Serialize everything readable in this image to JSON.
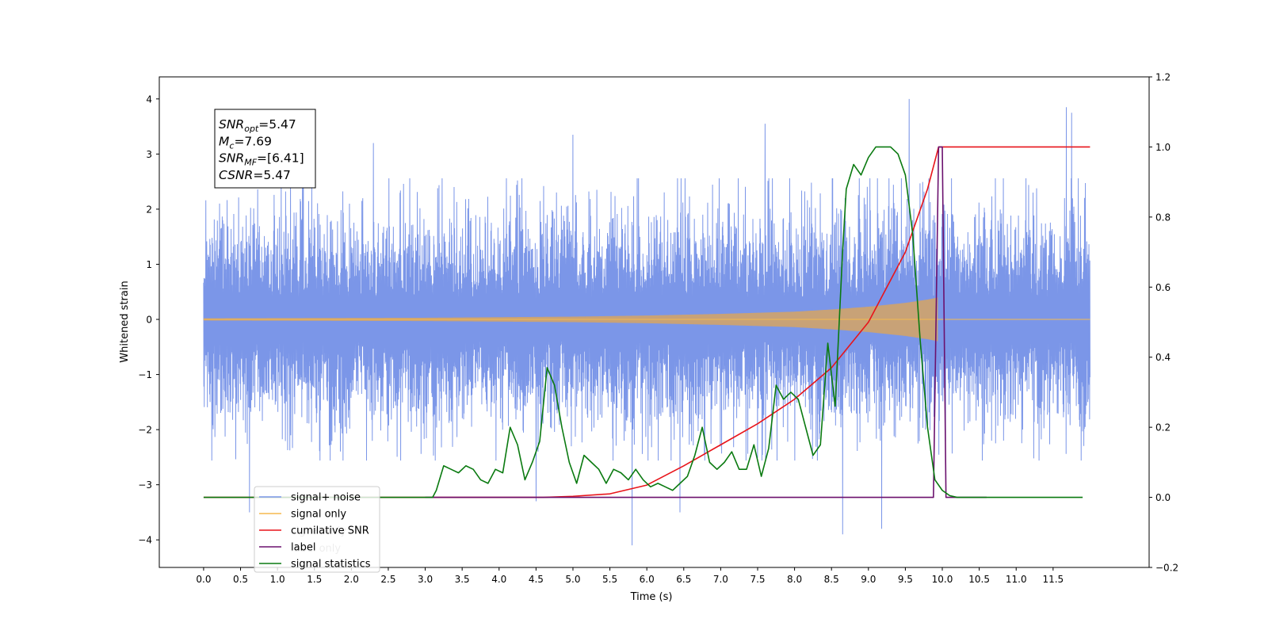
{
  "chart_data": {
    "type": "line",
    "xlabel": "Time (s)",
    "ylabel": "Whitened strain",
    "xlim": [
      -0.6,
      12.8
    ],
    "ylim": [
      -4.5,
      4.4
    ],
    "y2lim": [
      -0.2,
      1.2
    ],
    "x_ticks": [
      0.0,
      0.5,
      1.0,
      1.5,
      2.0,
      2.5,
      3.0,
      3.5,
      4.0,
      4.5,
      5.0,
      5.5,
      6.0,
      6.5,
      7.0,
      7.5,
      8.0,
      8.5,
      9.0,
      9.5,
      10.0,
      10.5,
      11.0,
      11.5
    ],
    "x_tick_labels": [
      "0.0",
      "0.5",
      "1.0",
      "1.5",
      "2.0",
      "2.5",
      "3.0",
      "3.5",
      "4.0",
      "4.5",
      "5.0",
      "5.5",
      "6.0",
      "6.5",
      "7.0",
      "7.5",
      "8.0",
      "8.5",
      "9.0",
      "9.5",
      "10.0",
      "10.5",
      "11.0",
      "11.5"
    ],
    "y_ticks": [
      4,
      3,
      2,
      1,
      0,
      -1,
      -2,
      -3,
      -4
    ],
    "y_tick_labels": [
      "4",
      "3",
      "2",
      "1",
      "0",
      "−1",
      "−2",
      "−3",
      "−4"
    ],
    "y2_ticks": [
      1.2,
      1.0,
      0.8,
      0.6,
      0.4,
      0.2,
      0.0,
      -0.2
    ],
    "y2_tick_labels": [
      "1.2",
      "1.0",
      "0.8",
      "0.6",
      "0.4",
      "0.2",
      "0.0",
      "−0.2"
    ],
    "grid": false,
    "legend_position": "lower-left",
    "annotation": {
      "lines": [
        {
          "main": "SNR",
          "sub": "opt",
          "rest": "=5.47"
        },
        {
          "main": "M",
          "sub": "c",
          "rest": "=7.69"
        },
        {
          "main": "SNR",
          "sub": "MF",
          "rest": "=[6.41]"
        },
        {
          "main": "CSNR",
          "sub": "",
          "rest": "=5.47"
        }
      ]
    },
    "series": [
      {
        "name": "signal+ noise",
        "axis": "left",
        "color": "#7b96e8",
        "x_range": [
          0.0,
          12.0
        ],
        "samples": 4000,
        "typical_amplitude": 1.5,
        "spikes": [
          {
            "x": 0.62,
            "y": -3.5
          },
          {
            "x": 1.35,
            "y": 3.3
          },
          {
            "x": 2.3,
            "y": 3.2
          },
          {
            "x": 4.5,
            "y": -3.3
          },
          {
            "x": 5.0,
            "y": 3.35
          },
          {
            "x": 5.8,
            "y": -4.1
          },
          {
            "x": 6.45,
            "y": -3.5
          },
          {
            "x": 7.6,
            "y": 3.55
          },
          {
            "x": 8.65,
            "y": -3.9
          },
          {
            "x": 9.18,
            "y": -3.8
          },
          {
            "x": 9.55,
            "y": 4.0
          },
          {
            "x": 11.68,
            "y": 3.85
          },
          {
            "x": 11.75,
            "y": 3.75
          }
        ]
      },
      {
        "name": "signal only",
        "axis": "left",
        "color": "#f5b94f",
        "fill_color": "#c8a277",
        "x_range": [
          0.0,
          12.0
        ],
        "envelope": {
          "x": [
            0,
            3,
            5,
            6,
            7,
            8,
            8.5,
            9.0,
            9.5,
            9.8,
            9.95
          ],
          "y": [
            0.02,
            0.03,
            0.05,
            0.07,
            0.1,
            0.14,
            0.18,
            0.23,
            0.3,
            0.36,
            0.4
          ]
        }
      },
      {
        "name": "cumilative SNR",
        "axis": "right",
        "color": "#e8141a",
        "x": [
          0,
          4.6,
          5.0,
          5.5,
          6.0,
          6.5,
          7.0,
          7.5,
          8.0,
          8.5,
          9.0,
          9.5,
          9.8,
          9.95,
          10.0,
          12.0
        ],
        "y": [
          0.0,
          0.0,
          0.003,
          0.01,
          0.035,
          0.09,
          0.15,
          0.21,
          0.28,
          0.37,
          0.5,
          0.7,
          0.88,
          1.0,
          1.0,
          1.0
        ]
      },
      {
        "name": "label",
        "axis": "right",
        "color": "#6b116e",
        "x": [
          3.0,
          9.88,
          9.95,
          10.0,
          10.05,
          10.6
        ],
        "y": [
          0.0,
          0.0,
          1.0,
          1.0,
          0.0,
          0.0
        ]
      },
      {
        "name": "signal statistics",
        "axis": "right",
        "color": "#0a7a10",
        "x": [
          0,
          3.1,
          3.15,
          3.25,
          3.35,
          3.45,
          3.55,
          3.65,
          3.75,
          3.85,
          3.95,
          4.05,
          4.15,
          4.25,
          4.35,
          4.45,
          4.55,
          4.65,
          4.75,
          4.85,
          4.95,
          5.05,
          5.15,
          5.25,
          5.35,
          5.45,
          5.55,
          5.65,
          5.75,
          5.85,
          5.95,
          6.05,
          6.15,
          6.25,
          6.35,
          6.45,
          6.55,
          6.65,
          6.75,
          6.85,
          6.95,
          7.05,
          7.15,
          7.25,
          7.35,
          7.45,
          7.55,
          7.65,
          7.75,
          7.85,
          7.95,
          8.05,
          8.15,
          8.25,
          8.35,
          8.45,
          8.55,
          8.65,
          8.7,
          8.8,
          8.9,
          9.0,
          9.1,
          9.2,
          9.3,
          9.4,
          9.5,
          9.6,
          9.7,
          9.8,
          9.9,
          10.0,
          10.1,
          10.2,
          11.9
        ],
        "y": [
          0.0,
          0.0,
          0.02,
          0.09,
          0.08,
          0.07,
          0.09,
          0.08,
          0.05,
          0.04,
          0.08,
          0.07,
          0.2,
          0.15,
          0.05,
          0.1,
          0.16,
          0.37,
          0.32,
          0.2,
          0.1,
          0.04,
          0.12,
          0.1,
          0.08,
          0.04,
          0.08,
          0.07,
          0.05,
          0.08,
          0.05,
          0.03,
          0.04,
          0.03,
          0.02,
          0.04,
          0.06,
          0.12,
          0.2,
          0.1,
          0.08,
          0.1,
          0.13,
          0.08,
          0.08,
          0.15,
          0.06,
          0.14,
          0.32,
          0.28,
          0.3,
          0.28,
          0.2,
          0.12,
          0.15,
          0.44,
          0.26,
          0.7,
          0.88,
          0.95,
          0.92,
          0.97,
          1.0,
          1.0,
          1.0,
          0.98,
          0.92,
          0.75,
          0.45,
          0.2,
          0.05,
          0.02,
          0.005,
          0.0,
          0.0
        ]
      }
    ],
    "legend": [
      {
        "label": "signal+ noise",
        "color": "#7b96e8"
      },
      {
        "label": "signal only",
        "color": "#f5b94f"
      },
      {
        "label": "cumilative SNR",
        "color": "#e8141a"
      },
      {
        "label": "label",
        "color": "#6b116e"
      },
      {
        "label": "signal statistics",
        "color": "#0a7a10"
      }
    ],
    "legend_ghost_text": [
      "signal only",
      "label only"
    ]
  }
}
